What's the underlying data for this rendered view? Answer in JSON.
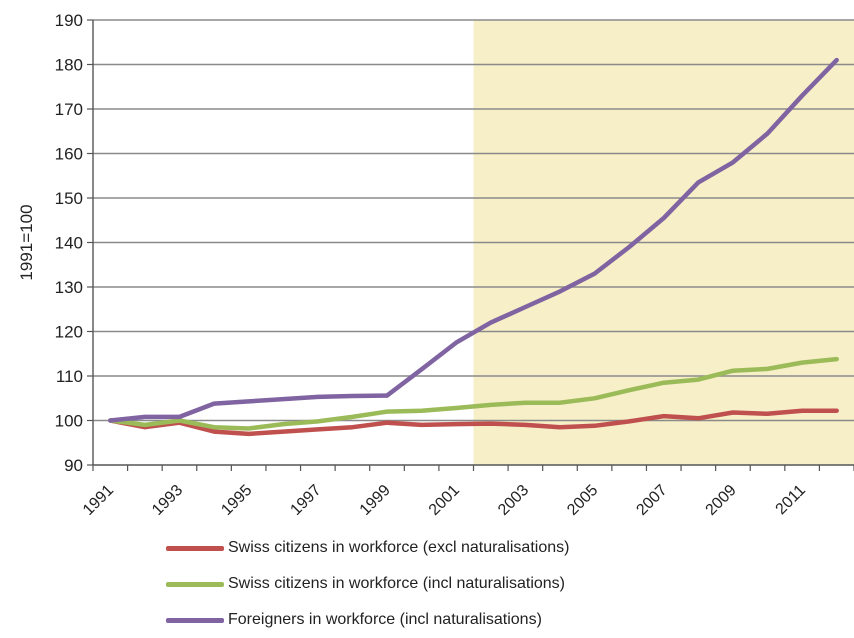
{
  "chart_data": {
    "type": "line",
    "title": "",
    "xlabel": "",
    "ylabel": "1991=100",
    "ylim": [
      90,
      190
    ],
    "yticks": [
      90,
      100,
      110,
      120,
      130,
      140,
      150,
      160,
      170,
      180,
      190
    ],
    "x": [
      1991,
      1992,
      1993,
      1994,
      1995,
      1996,
      1997,
      1998,
      1999,
      2000,
      2001,
      2002,
      2003,
      2004,
      2005,
      2006,
      2007,
      2008,
      2009,
      2010,
      2011,
      2012
    ],
    "xtick_labels": [
      "1991",
      "1993",
      "1995",
      "1997",
      "1999",
      "2001",
      "2003",
      "2005",
      "2007",
      "2009",
      "2011"
    ],
    "shaded_region": {
      "x_start": 2001.5,
      "x_end": 2012.5,
      "color": "#f7efc8"
    },
    "grid": "horizontal",
    "legend_position": "bottom",
    "series": [
      {
        "name": "Swiss citizens in workforce (excl naturalisations)",
        "color": "#c0504d",
        "values": [
          100,
          98.5,
          99.5,
          97.5,
          97,
          97.5,
          98,
          98.5,
          99.5,
          99,
          99.2,
          99.3,
          99,
          98.5,
          98.8,
          99.8,
          101,
          100.5,
          101.8,
          101.5,
          102.2,
          102.2
        ]
      },
      {
        "name": "Swiss citizens in workforce (incl naturalisations)",
        "color": "#9bbb59",
        "values": [
          100,
          99,
          100,
          98.5,
          98.2,
          99.2,
          99.8,
          100.8,
          102,
          102.2,
          102.8,
          103.5,
          104,
          104,
          105,
          106.8,
          108.5,
          109.2,
          111.2,
          111.6,
          113,
          113.8
        ]
      },
      {
        "name": "Foreigners in workforce (incl naturalisations)",
        "color": "#8064a2",
        "values": [
          100,
          100.8,
          100.8,
          103.8,
          104.3,
          104.8,
          105.3,
          105.5,
          105.6,
          111.5,
          117.5,
          122,
          125.5,
          129,
          133,
          139,
          145.5,
          153.5,
          158,
          164.5,
          173,
          181
        ]
      }
    ]
  }
}
